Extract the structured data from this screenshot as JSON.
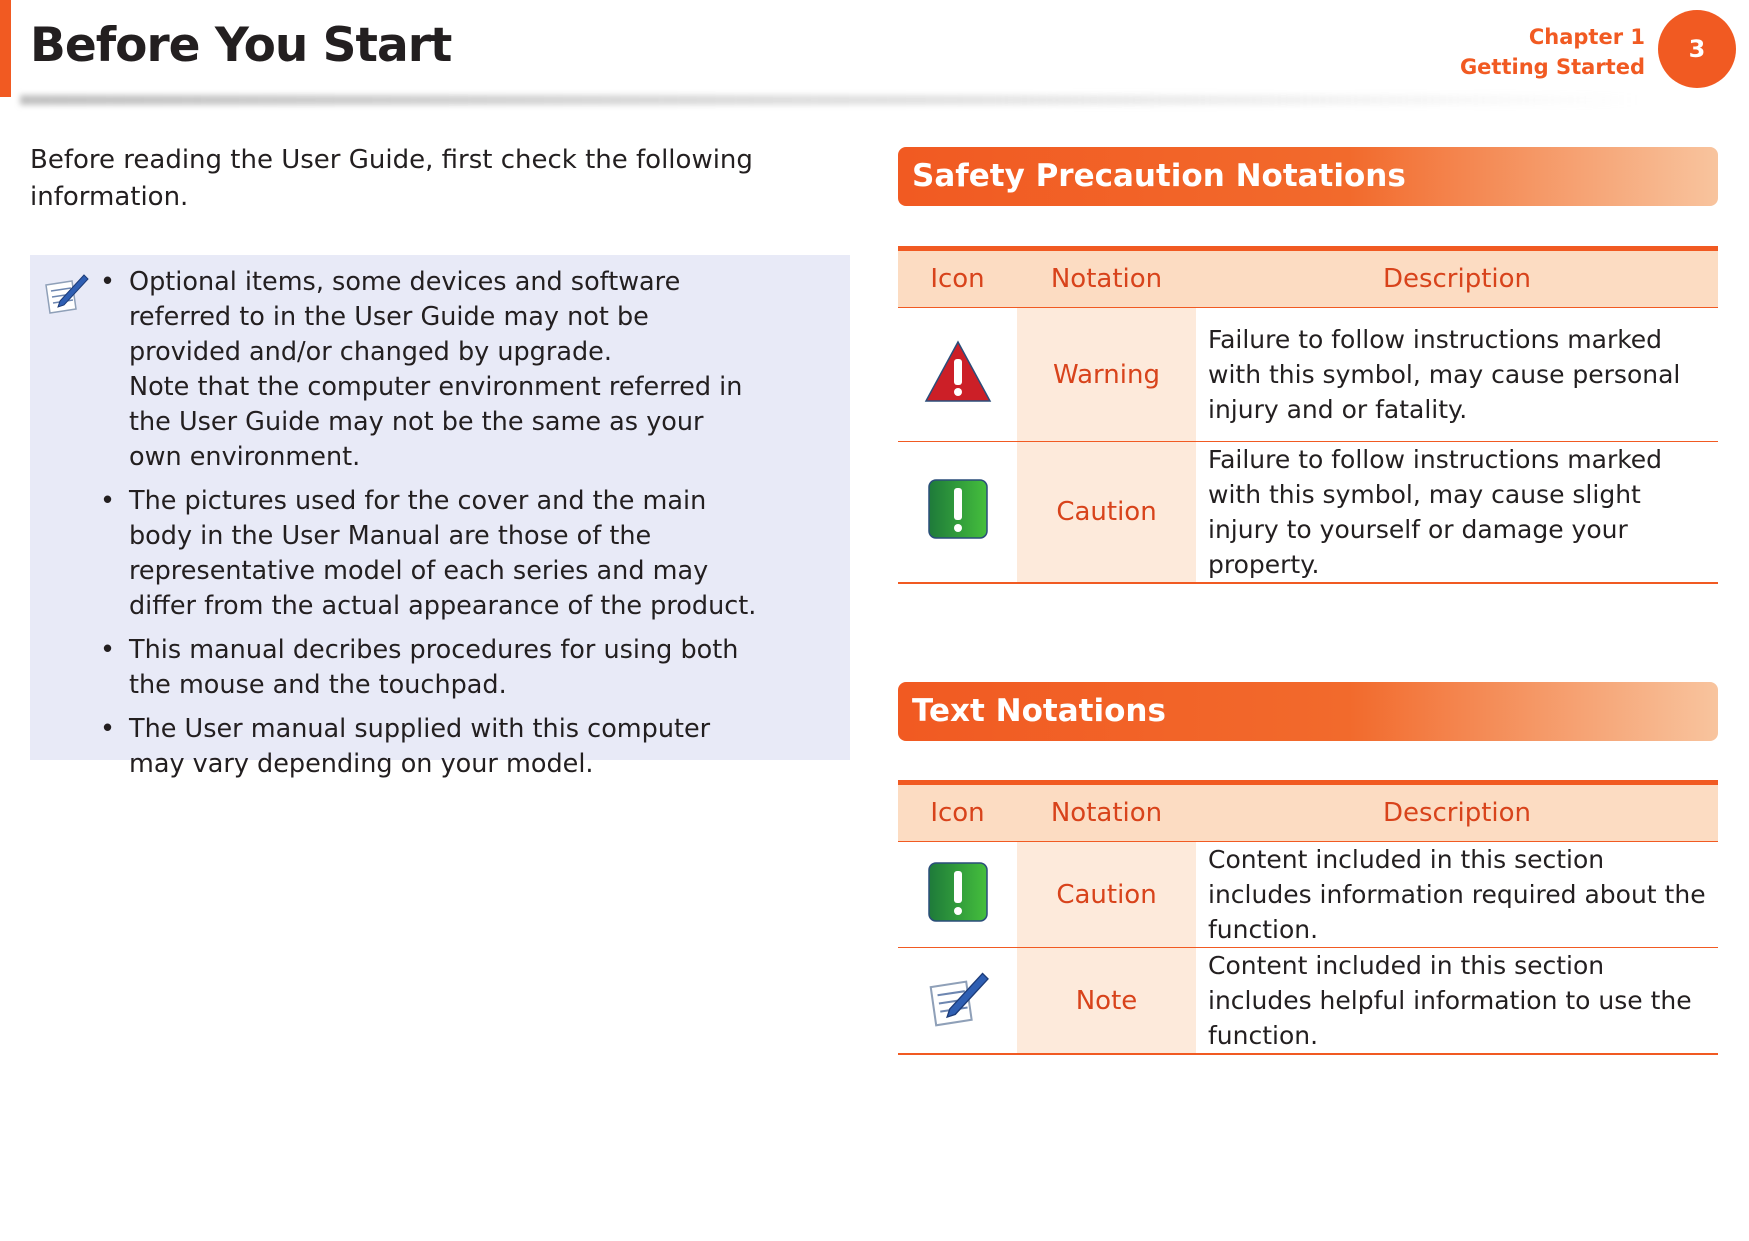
{
  "header": {
    "title": "Before You Start",
    "chapter": "Chapter 1",
    "section": "Getting Started",
    "page_number": "3"
  },
  "colors": {
    "accent": "#f15a22",
    "note_bg": "#e8eaf7",
    "table_header_bg": "#fcdcc2",
    "notation_bg": "#fdeadb"
  },
  "intro": "Before reading the User Guide, first check the following information.",
  "note": {
    "icon": "note-pencil-icon",
    "items": [
      {
        "text": "Optional items, some devices and software referred to in the User Guide may not be provided and/or changed by upgrade.",
        "extra": "Note that the computer environment referred in the User Guide may not be the same as your own environment."
      },
      {
        "text": "The pictures used for the cover and the main body in the User Manual are those of the representative model of each series and may differ from the actual appearance of the product."
      },
      {
        "text": "This manual decribes procedures for using both the mouse and the touchpad."
      },
      {
        "text": "The User manual supplied with this computer may vary depending on your model."
      }
    ],
    "bullet": "•"
  },
  "safety": {
    "title": "Safety Precaution Notations",
    "columns": [
      "Icon",
      "Notation",
      "Description"
    ],
    "rows": [
      {
        "icon": "warning-triangle-icon",
        "notation": "Warning",
        "description": "Failure to follow instructions marked with this symbol, may cause personal injury and or fatality."
      },
      {
        "icon": "caution-exclamation-icon",
        "notation": "Caution",
        "description": "Failure to follow instructions marked with this symbol, may cause slight injury to yourself or damage your property."
      }
    ]
  },
  "text_notations": {
    "title": "Text Notations",
    "columns": [
      "Icon",
      "Notation",
      "Description"
    ],
    "rows": [
      {
        "icon": "caution-exclamation-icon",
        "notation": "Caution",
        "description": "Content included in this section includes information required about the function."
      },
      {
        "icon": "note-pencil-icon",
        "notation": "Note",
        "description": "Content included in this section includes helpful information to use the function."
      }
    ]
  }
}
